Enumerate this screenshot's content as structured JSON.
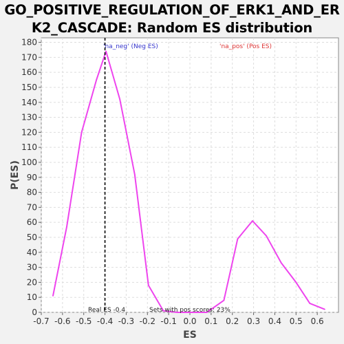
{
  "title_lines": [
    "GO_POSITIVE_REGULATION_OF_ERK1_AND_ER",
    "K2_CASCADE: Random ES distribution"
  ],
  "colors": {
    "line": "#ee44ee",
    "neg_label": "#3333cc",
    "pos_label": "#dd3333",
    "real_es_line": "#000000",
    "plot_bg": "#ffffff",
    "grid": "#dddddd"
  },
  "chart_data": {
    "type": "line",
    "title": "GO_POSITIVE_REGULATION_OF_ERK1_AND_ERK2_CASCADE: Random ES distribution",
    "xlabel": "ES",
    "ylabel": "P(ES)",
    "xlim": [
      -0.7,
      0.7
    ],
    "ylim": [
      0,
      183
    ],
    "x_ticks": [
      -0.7,
      -0.6,
      -0.5,
      -0.4,
      -0.3,
      -0.2,
      -0.1,
      0.0,
      0.1,
      0.2,
      0.3,
      0.4,
      0.5,
      0.6
    ],
    "x_tick_labels": [
      "-0.7",
      "-0.6",
      "-0.5",
      "-0.4",
      "-0.3",
      "-0.2",
      "-0.1",
      "0.0",
      "0.1",
      "0.2",
      "0.3",
      "0.4",
      "0.5",
      "0.6"
    ],
    "y_ticks": [
      0,
      10,
      20,
      30,
      40,
      50,
      60,
      70,
      80,
      90,
      100,
      110,
      120,
      130,
      140,
      150,
      160,
      170,
      180
    ],
    "grid": true,
    "series": [
      {
        "x": [
          -0.645,
          -0.58,
          -0.51,
          -0.44,
          -0.395,
          -0.33,
          -0.26,
          -0.195,
          -0.125,
          -0.06,
          0.01,
          0.08,
          0.16,
          0.225,
          0.295,
          0.36,
          0.43,
          0.5,
          0.565,
          0.635
        ],
        "values": [
          11,
          57,
          120,
          155,
          174,
          142,
          92,
          18,
          1,
          0,
          0,
          0,
          8,
          49,
          61,
          51,
          33,
          20,
          6,
          2
        ]
      }
    ],
    "real_es": -0.4,
    "annotations": {
      "neg_label": "'na_neg' (Neg ES)",
      "pos_label": "'na_pos' (Pos ES)",
      "real_es_label": "Real ES -0.4",
      "pos_scores_label": "Sets with pos scores: 23%"
    }
  }
}
